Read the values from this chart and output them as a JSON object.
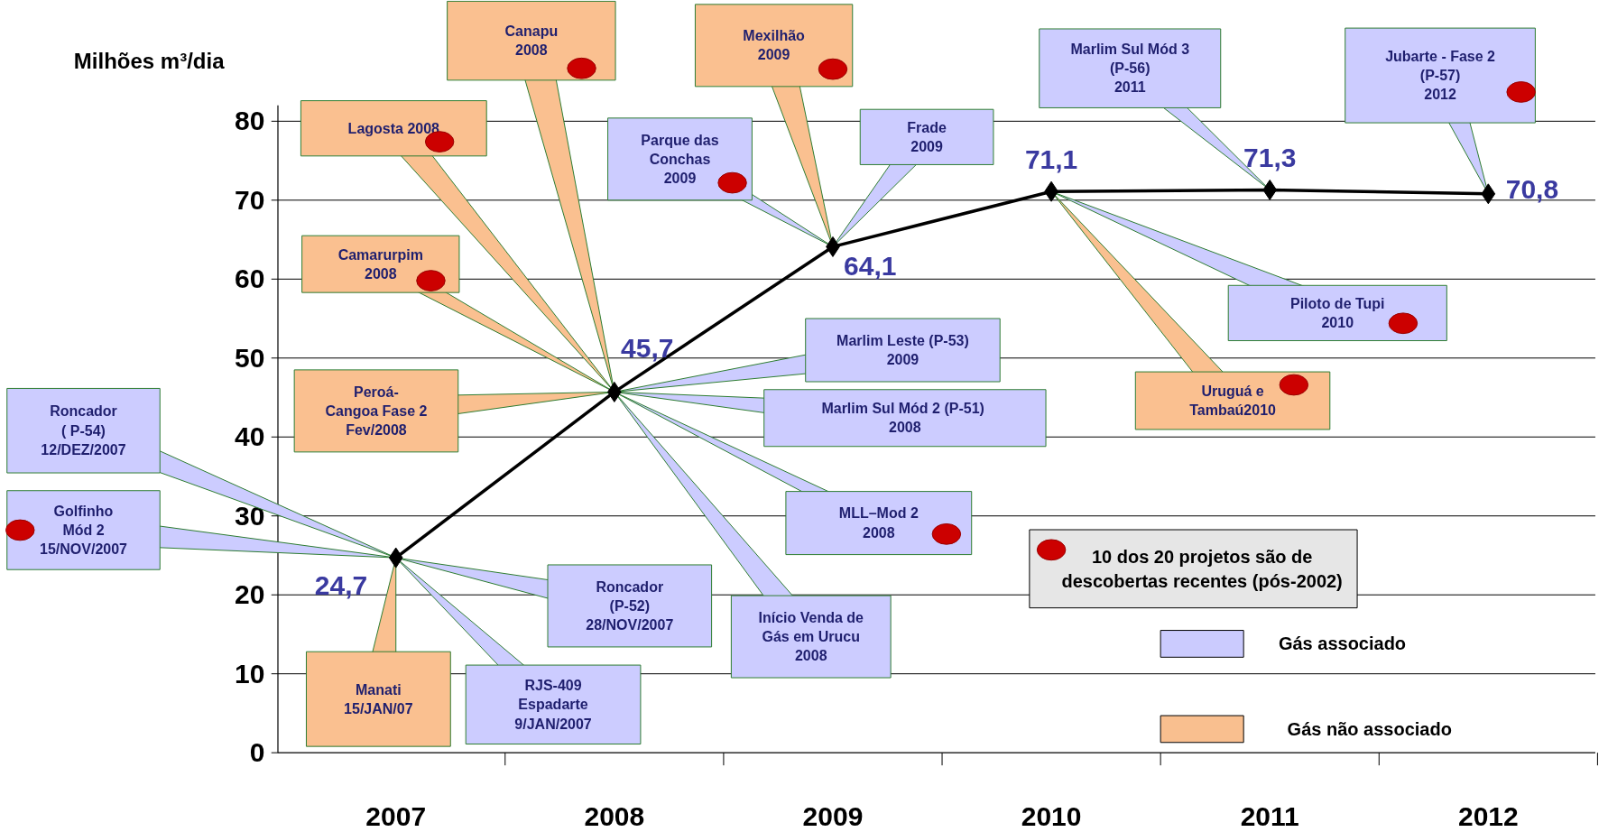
{
  "chart_data": {
    "type": "line",
    "ylabel": "Milhões m³/dia",
    "categories": [
      "2007",
      "2008",
      "2009",
      "2010",
      "2011",
      "2012"
    ],
    "series": [
      {
        "color": "#000000",
        "values": [
          24.7,
          45.7,
          64.1,
          71.1,
          71.3,
          70.8
        ],
        "value_labels": [
          "24,7",
          "45,7",
          "64,1",
          "71,1",
          "71,3",
          "70,8"
        ]
      }
    ],
    "ylim": [
      0,
      80
    ],
    "yticks": [
      0,
      10,
      20,
      30,
      40,
      50,
      60,
      70,
      80
    ],
    "grid": "y",
    "marker": "diamond",
    "line_style": "solid",
    "annotations": [
      {
        "text": "Roncador\n( P-54)\n12/DEZ/2007",
        "x": "2007",
        "y": 24.7
      },
      {
        "text": "Golfinho\nMód 2\n15/NOV/2007",
        "x": "2007",
        "y": 24.7
      },
      {
        "text": "Roncador\n(P-52)\n28/NOV/2007",
        "x": "2007",
        "y": 24.7
      },
      "RJS-409\nEspadarte\n9/JAN/2007",
      {
        "text": "Manati\n15/JAN/07",
        "x": "2007",
        "y": 24.7
      },
      "Início Venda de\nGás em Urucu\n2008",
      {
        "text": "MLL–Mod 2\n2008",
        "x": "2008",
        "y": 45.7
      },
      {
        "text": "Marlim Sul  Mód 2 (P-51)\n2008",
        "x": "2008",
        "y": 45.7
      },
      {
        "text": "Marlim Leste (P-53)\n2009",
        "x": "2008",
        "y": 45.7
      },
      {
        "text": "Peroá-\nCangoa Fase 2\nFev/2008",
        "x": "2008",
        "y": 45.7
      },
      "Camarurpim\n2008",
      "Lagosta 2008",
      {
        "text": "Canapu\n2008",
        "x": "2008",
        "y": 45.7
      },
      "Parque das\nConchas\n2009",
      {
        "text": "Mexilhão\n2009",
        "x": "2009",
        "y": 64.1
      },
      "Frade\n2009",
      "Marlim Sul Mód 3\n(P-56)\n2011",
      "Jubarte - Fase 2\n(P-57)\n2012",
      {
        "text": "Piloto de Tupi\n2010",
        "x": "2010",
        "y": 71.1
      },
      "Uruguá e\nTambaú2010",
      "10 dos 20 projetos são de\ndescobertas recentes (pós-2002)",
      "Gás associado",
      "Gás não associado"
    ]
  }
}
